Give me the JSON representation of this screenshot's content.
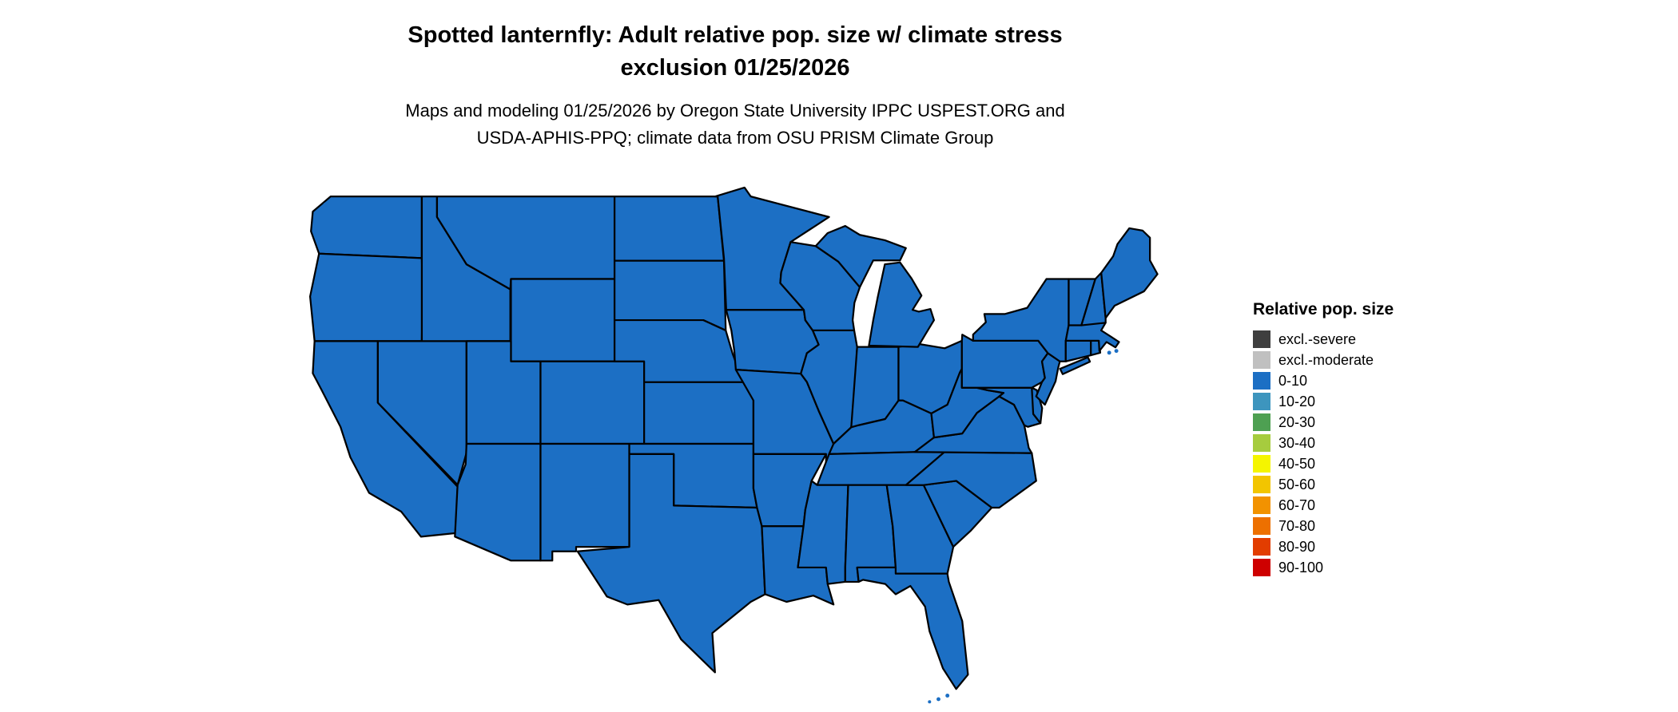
{
  "title": {
    "line1": "Spotted lanternfly: Adult relative pop. size w/ climate stress",
    "line2": "exclusion 01/25/2026"
  },
  "subtitle": {
    "line1": "Maps and modeling 01/25/2026 by Oregon State University IPPC USPEST.ORG and",
    "line2": "USDA-APHIS-PPQ; climate data from OSU PRISM Climate Group"
  },
  "legend": {
    "title": "Relative pop. size",
    "items": [
      {
        "label": "excl.-severe",
        "color": "#3f3f3f"
      },
      {
        "label": "excl.-moderate",
        "color": "#c0c0c0"
      },
      {
        "label": "0-10",
        "color": "#1c6fc4"
      },
      {
        "label": "10-20",
        "color": "#3d95be"
      },
      {
        "label": "20-30",
        "color": "#4ea052"
      },
      {
        "label": "30-40",
        "color": "#a6cc3e"
      },
      {
        "label": "40-50",
        "color": "#f5f500"
      },
      {
        "label": "50-60",
        "color": "#f2c500"
      },
      {
        "label": "60-70",
        "color": "#f29200"
      },
      {
        "label": "70-80",
        "color": "#ed7000"
      },
      {
        "label": "80-90",
        "color": "#e23d00"
      },
      {
        "label": "90-100",
        "color": "#ce0000"
      }
    ]
  },
  "map": {
    "state_fill_color": "#1c6fc4",
    "border_color": "#000000"
  }
}
